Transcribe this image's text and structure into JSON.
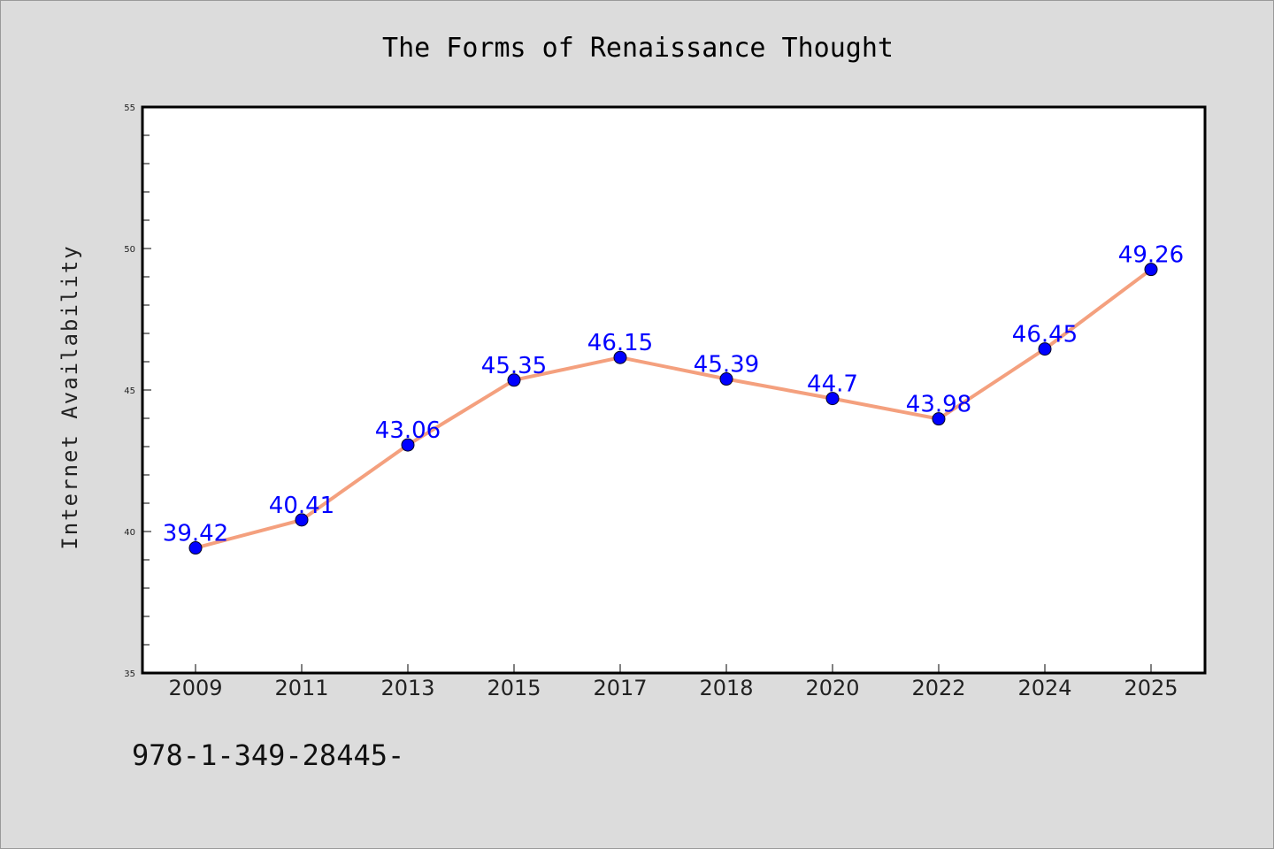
{
  "chart_data": {
    "type": "line",
    "title": "The Forms of Renaissance Thought",
    "xlabel": "",
    "ylabel": "Internet Availability",
    "categories": [
      "2009",
      "2011",
      "2013",
      "2015",
      "2017",
      "2018",
      "2020",
      "2022",
      "2024",
      "2025"
    ],
    "series": [
      {
        "values": [
          39.42,
          40.41,
          43.06,
          45.35,
          46.15,
          45.39,
          44.7,
          43.98,
          46.45,
          49.26
        ],
        "labels": [
          "39.42",
          "40.41",
          "43.06",
          "45.35",
          "46.15",
          "45.39",
          "44.7",
          "43.98",
          "46.45",
          "49.26"
        ],
        "line_color": "#f4a07e",
        "marker_color": "#0000ff"
      }
    ],
    "ylim": [
      35,
      55
    ],
    "yticks": [
      "35",
      "40",
      "45",
      "50",
      "55"
    ],
    "grid": false,
    "legend": "none"
  },
  "footer_text": "978-1-349-28445-"
}
